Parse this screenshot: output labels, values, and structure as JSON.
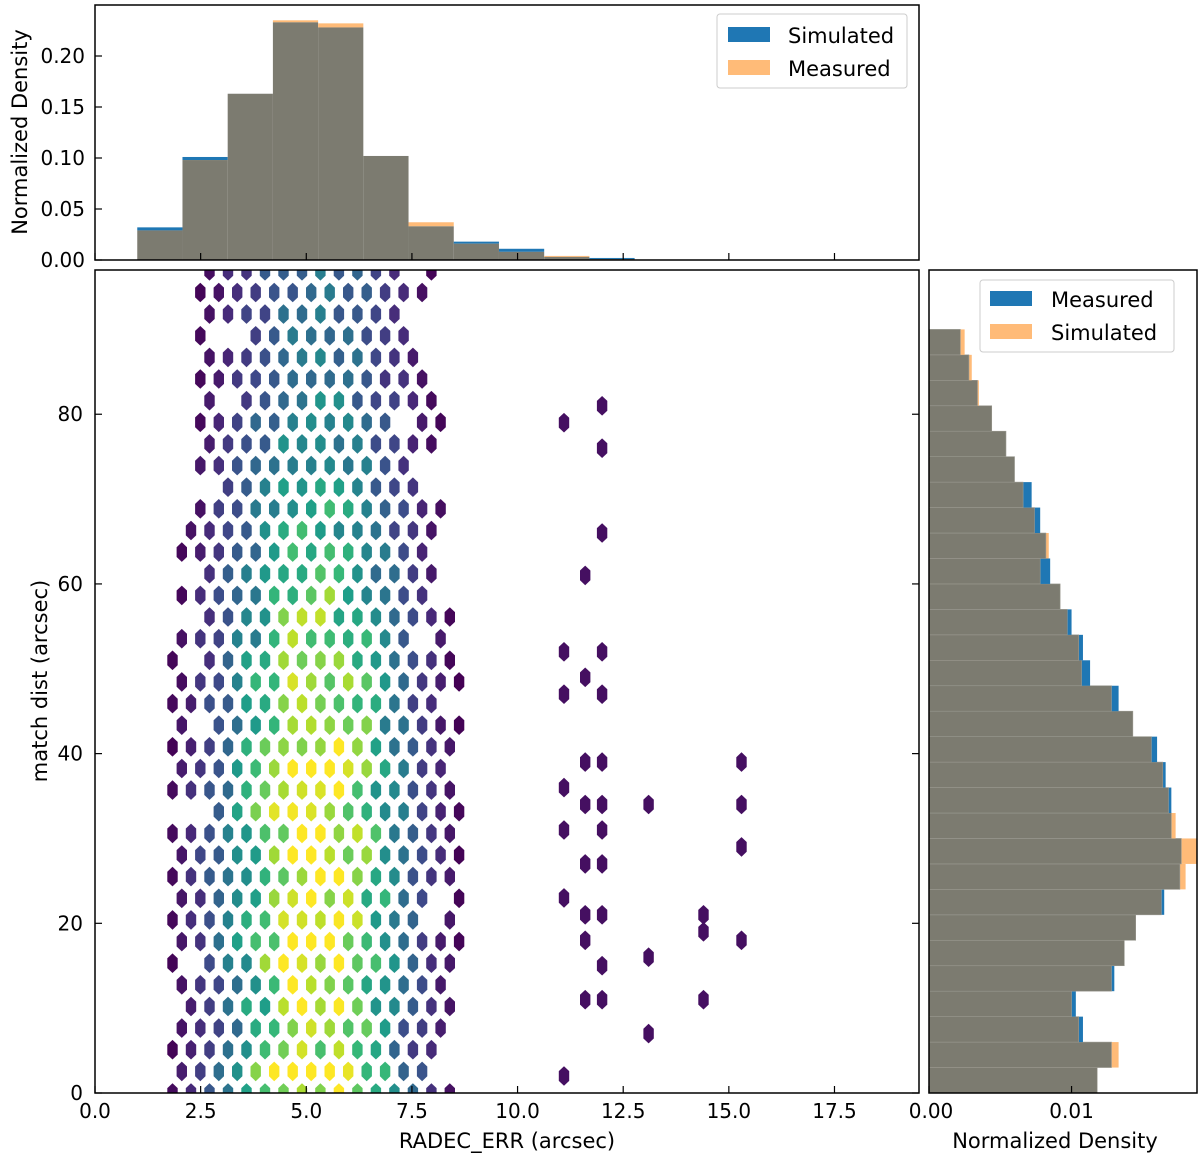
{
  "colors": {
    "series_blue": "#1f77b4",
    "series_orange": "#ffbb78",
    "overlap": "#7c7b70",
    "colormap": "viridis"
  },
  "chart_data": [
    {
      "id": "top-hist",
      "type": "bar",
      "title": "",
      "xlabel": "",
      "ylabel": "Normalized Density",
      "xlim": [
        0,
        19.5
      ],
      "ylim": [
        0,
        0.25
      ],
      "yticks": [
        "0.00",
        "0.05",
        "0.10",
        "0.15",
        "0.20"
      ],
      "bin_edges": [
        1.0,
        2.07,
        3.14,
        4.21,
        5.28,
        6.35,
        7.42,
        8.49,
        9.56,
        10.63,
        11.7,
        12.77
      ],
      "series": [
        {
          "name": "Simulated",
          "color": "#1f77b4",
          "values": [
            0.032,
            0.101,
            0.163,
            0.233,
            0.228,
            0.102,
            0.033,
            0.018,
            0.011,
            0.003,
            0.002
          ]
        },
        {
          "name": "Measured",
          "color": "#ffbb78",
          "values": [
            0.029,
            0.098,
            0.163,
            0.235,
            0.232,
            0.102,
            0.037,
            0.016,
            0.008,
            0.004,
            0.001
          ]
        }
      ],
      "legend": {
        "position": "top-right",
        "entries": [
          "Simulated",
          "Measured"
        ]
      }
    },
    {
      "id": "main-hexbin",
      "type": "heatmap",
      "title": "",
      "xlabel": "RADEC_ERR (arcsec)",
      "ylabel": "match dist (arcsec)",
      "xlim": [
        0,
        19.5
      ],
      "ylim": [
        0,
        97
      ],
      "xticks": [
        "0.0",
        "2.5",
        "5.0",
        "7.5",
        "10.0",
        "12.5",
        "15.0",
        "17.5"
      ],
      "yticks": [
        "0",
        "20",
        "40",
        "60",
        "80"
      ],
      "colormap": "viridis",
      "density_model": {
        "x_peak": 5.2,
        "x_spread": 1.6,
        "y_peak": 28,
        "y_spread": 30,
        "x_range": [
          1.0,
          10.6
        ]
      },
      "outlier_points": [
        [
          12.0,
          81
        ],
        [
          12.0,
          76
        ],
        [
          11.1,
          79
        ],
        [
          11.6,
          61
        ],
        [
          12.0,
          66
        ],
        [
          11.1,
          52
        ],
        [
          12.0,
          52
        ],
        [
          11.6,
          49
        ],
        [
          11.1,
          47
        ],
        [
          12.0,
          47
        ],
        [
          11.6,
          39
        ],
        [
          12.0,
          39
        ],
        [
          11.1,
          36
        ],
        [
          11.6,
          34
        ],
        [
          12.0,
          34
        ],
        [
          11.1,
          31
        ],
        [
          12.0,
          31
        ],
        [
          11.6,
          27
        ],
        [
          12.0,
          27
        ],
        [
          11.1,
          23
        ],
        [
          11.6,
          21
        ],
        [
          12.0,
          21
        ],
        [
          11.6,
          18
        ],
        [
          12.0,
          15
        ],
        [
          11.6,
          11
        ],
        [
          12.0,
          11
        ],
        [
          11.1,
          2
        ],
        [
          13.1,
          34
        ],
        [
          13.1,
          16
        ],
        [
          13.1,
          7
        ],
        [
          14.4,
          21
        ],
        [
          14.4,
          19
        ],
        [
          14.4,
          11
        ],
        [
          15.3,
          39
        ],
        [
          15.3,
          34
        ],
        [
          15.3,
          29
        ],
        [
          15.3,
          18
        ]
      ]
    },
    {
      "id": "right-hist",
      "type": "bar",
      "orientation": "horizontal",
      "title": "",
      "xlabel": "Normalized Density",
      "ylabel": "",
      "xlim": [
        0,
        0.0188
      ],
      "ylim": [
        0,
        97
      ],
      "xticks": [
        "0.00",
        "0.01"
      ],
      "bin_edges": [
        0,
        3,
        6,
        9,
        12,
        15,
        18,
        21,
        24,
        27,
        30,
        33,
        36,
        39,
        42,
        45,
        48,
        51,
        54,
        57,
        60,
        63,
        66,
        69,
        72,
        75,
        78,
        81,
        84,
        87,
        90
      ],
      "series": [
        {
          "name": "Measured",
          "color": "#1f77b4",
          "values": [
            0.0118,
            0.0128,
            0.0108,
            0.0103,
            0.013,
            0.0137,
            0.0145,
            0.0165,
            0.0176,
            0.0177,
            0.017,
            0.017,
            0.0166,
            0.016,
            0.0143,
            0.0133,
            0.0113,
            0.0108,
            0.01,
            0.0092,
            0.0085,
            0.0082,
            0.0078,
            0.0072,
            0.006,
            0.0054,
            0.0044,
            0.0034,
            0.0028,
            0.0022
          ]
        },
        {
          "name": "Simulated",
          "color": "#ffbb78",
          "values": [
            0.0118,
            0.0133,
            0.0105,
            0.01,
            0.0128,
            0.0137,
            0.0145,
            0.0163,
            0.018,
            0.0188,
            0.0173,
            0.0168,
            0.0164,
            0.0156,
            0.0143,
            0.0128,
            0.0107,
            0.0105,
            0.0097,
            0.0092,
            0.0078,
            0.0084,
            0.0074,
            0.0066,
            0.006,
            0.0054,
            0.0044,
            0.0035,
            0.003,
            0.0025
          ]
        }
      ],
      "legend": {
        "position": "top-right",
        "entries": [
          "Measured",
          "Simulated"
        ]
      }
    }
  ]
}
